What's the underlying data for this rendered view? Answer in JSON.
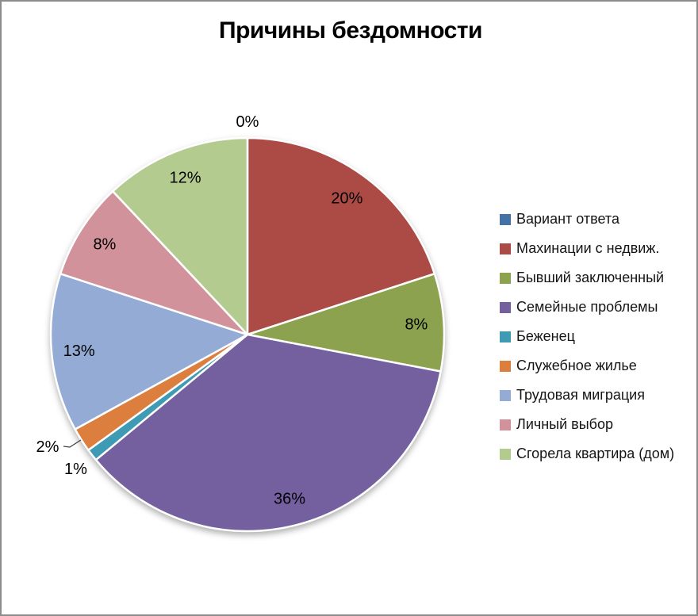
{
  "title": "Причины бездомности",
  "frame": {
    "background_color": "#FFFFFF",
    "border_color": "#8C8C8C"
  },
  "chart_data": {
    "type": "pie",
    "title": "Причины бездомности",
    "unit": "%",
    "start_angle_deg": 0,
    "direction": "clockwise",
    "legend_position": "right",
    "grid": false,
    "slices": [
      {
        "label": "Вариант ответа",
        "value": 0,
        "display": "0%",
        "color": "#4472A4",
        "label_placement": "outside",
        "leader_line": false
      },
      {
        "label": "Махинации с недвиж.",
        "value": 20,
        "display": "20%",
        "color": "#AC4B46",
        "label_placement": "inside",
        "leader_line": false
      },
      {
        "label": "Бывший заключенный",
        "value": 8,
        "display": "8%",
        "color": "#8CA24F",
        "label_placement": "inside",
        "leader_line": false
      },
      {
        "label": "Семейные проблемы",
        "value": 36,
        "display": "36%",
        "color": "#74609F",
        "label_placement": "inside",
        "leader_line": false
      },
      {
        "label": "Беженец",
        "value": 1,
        "display": "1%",
        "color": "#3F9BB3",
        "label_placement": "outside",
        "leader_line": false
      },
      {
        "label": "Служебное жилье",
        "value": 2,
        "display": "2%",
        "color": "#DC7F3E",
        "label_placement": "outside",
        "leader_line": true
      },
      {
        "label": "Трудовая миграция",
        "value": 13,
        "display": "13%",
        "color": "#94ABD5",
        "label_placement": "inside",
        "leader_line": false
      },
      {
        "label": "Личный выбор",
        "value": 8,
        "display": "8%",
        "color": "#D1929B",
        "label_placement": "inside",
        "leader_line": false
      },
      {
        "label": "Сгорела квартира (дом)",
        "value": 12,
        "display": "12%",
        "color": "#B4CB8F",
        "label_placement": "inside",
        "leader_line": false
      }
    ]
  }
}
